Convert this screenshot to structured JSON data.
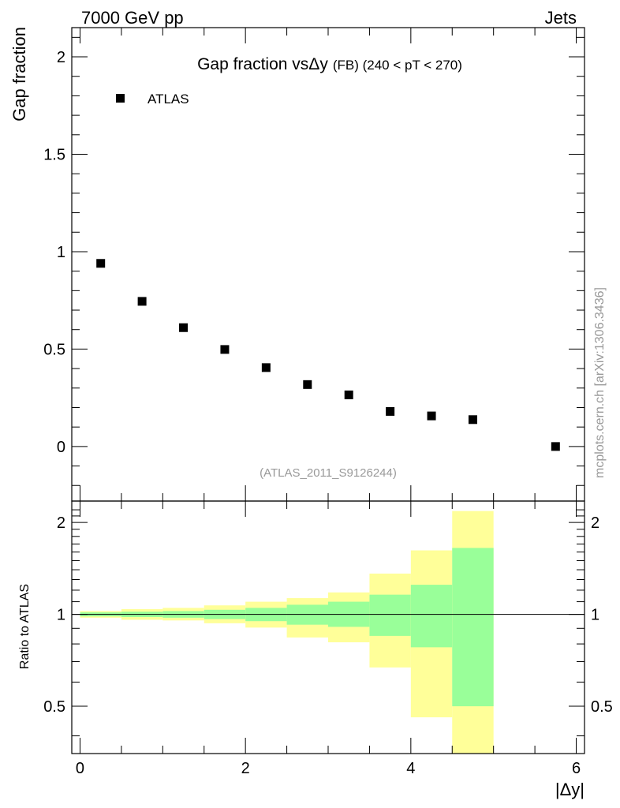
{
  "header": {
    "left_label": "7000 GeV pp",
    "right_label": "Jets"
  },
  "side_label": "mcplots.cern.ch [arXiv:1306.3436]",
  "colors": {
    "band_outer": "#ffff99",
    "band_inner": "#99ff99",
    "marker": "#000000",
    "ref_line": "#000000",
    "watermark": "#999999"
  },
  "chart_data": [
    {
      "type": "scatter",
      "title": "Gap fraction vsΔy",
      "subtitle": "(FB)  (240 < pT < 270)",
      "ylabel": "Gap fraction",
      "xlabel": "",
      "xlim": [
        -0.1,
        6.1
      ],
      "ylim": [
        -0.28,
        2.15
      ],
      "xticks": [
        0,
        2,
        4,
        6
      ],
      "yticks": [
        0,
        0.5,
        1,
        1.5,
        2
      ],
      "ytick_labels": [
        "0",
        "0.5",
        "1",
        "1.5",
        "2"
      ],
      "legend": {
        "placement": "top-left",
        "entries": [
          "ATLAS"
        ]
      },
      "watermark": "(ATLAS_2011_S9126244)",
      "series": [
        {
          "name": "ATLAS",
          "x": [
            0.25,
            0.75,
            1.25,
            1.75,
            2.25,
            2.75,
            3.25,
            3.75,
            4.25,
            4.75,
            5.75
          ],
          "y": [
            0.94,
            0.745,
            0.61,
            0.498,
            0.405,
            0.318,
            0.265,
            0.18,
            0.157,
            0.138,
            0.0
          ]
        }
      ]
    },
    {
      "type": "area",
      "ylabel": "Ratio to ATLAS",
      "xlabel": "|Δy|",
      "xlim": [
        -0.1,
        6.1
      ],
      "ylim": [
        0.35,
        2.35
      ],
      "scale_y": "log",
      "xticks": [
        0,
        2,
        4,
        6
      ],
      "xtick_labels": [
        "0",
        "2",
        "4",
        "6"
      ],
      "yticks": [
        0.5,
        1,
        2
      ],
      "ytick_labels": [
        "0.5",
        "1",
        "2"
      ],
      "reference_line": 1,
      "bins": [
        {
          "x_low": 0.0,
          "x_high": 0.5,
          "inner": [
            0.985,
            1.015
          ],
          "outer": [
            0.975,
            1.025
          ]
        },
        {
          "x_low": 0.5,
          "x_high": 1.0,
          "inner": [
            0.98,
            1.02
          ],
          "outer": [
            0.96,
            1.04
          ]
        },
        {
          "x_low": 1.0,
          "x_high": 1.5,
          "inner": [
            0.975,
            1.025
          ],
          "outer": [
            0.955,
            1.05
          ]
        },
        {
          "x_low": 1.5,
          "x_high": 2.0,
          "inner": [
            0.965,
            1.035
          ],
          "outer": [
            0.935,
            1.07
          ]
        },
        {
          "x_low": 2.0,
          "x_high": 2.5,
          "inner": [
            0.95,
            1.05
          ],
          "outer": [
            0.905,
            1.1
          ]
        },
        {
          "x_low": 2.5,
          "x_high": 3.0,
          "inner": [
            0.925,
            1.075
          ],
          "outer": [
            0.84,
            1.13
          ]
        },
        {
          "x_low": 3.0,
          "x_high": 3.5,
          "inner": [
            0.91,
            1.1
          ],
          "outer": [
            0.81,
            1.18
          ]
        },
        {
          "x_low": 3.5,
          "x_high": 4.0,
          "inner": [
            0.85,
            1.16
          ],
          "outer": [
            0.67,
            1.36
          ]
        },
        {
          "x_low": 4.0,
          "x_high": 4.5,
          "inner": [
            0.78,
            1.25
          ],
          "outer": [
            0.46,
            1.62
          ]
        },
        {
          "x_low": 4.5,
          "x_high": 5.0,
          "inner": [
            0.5,
            1.65
          ],
          "outer": [
            0.34,
            2.18
          ]
        }
      ]
    }
  ]
}
